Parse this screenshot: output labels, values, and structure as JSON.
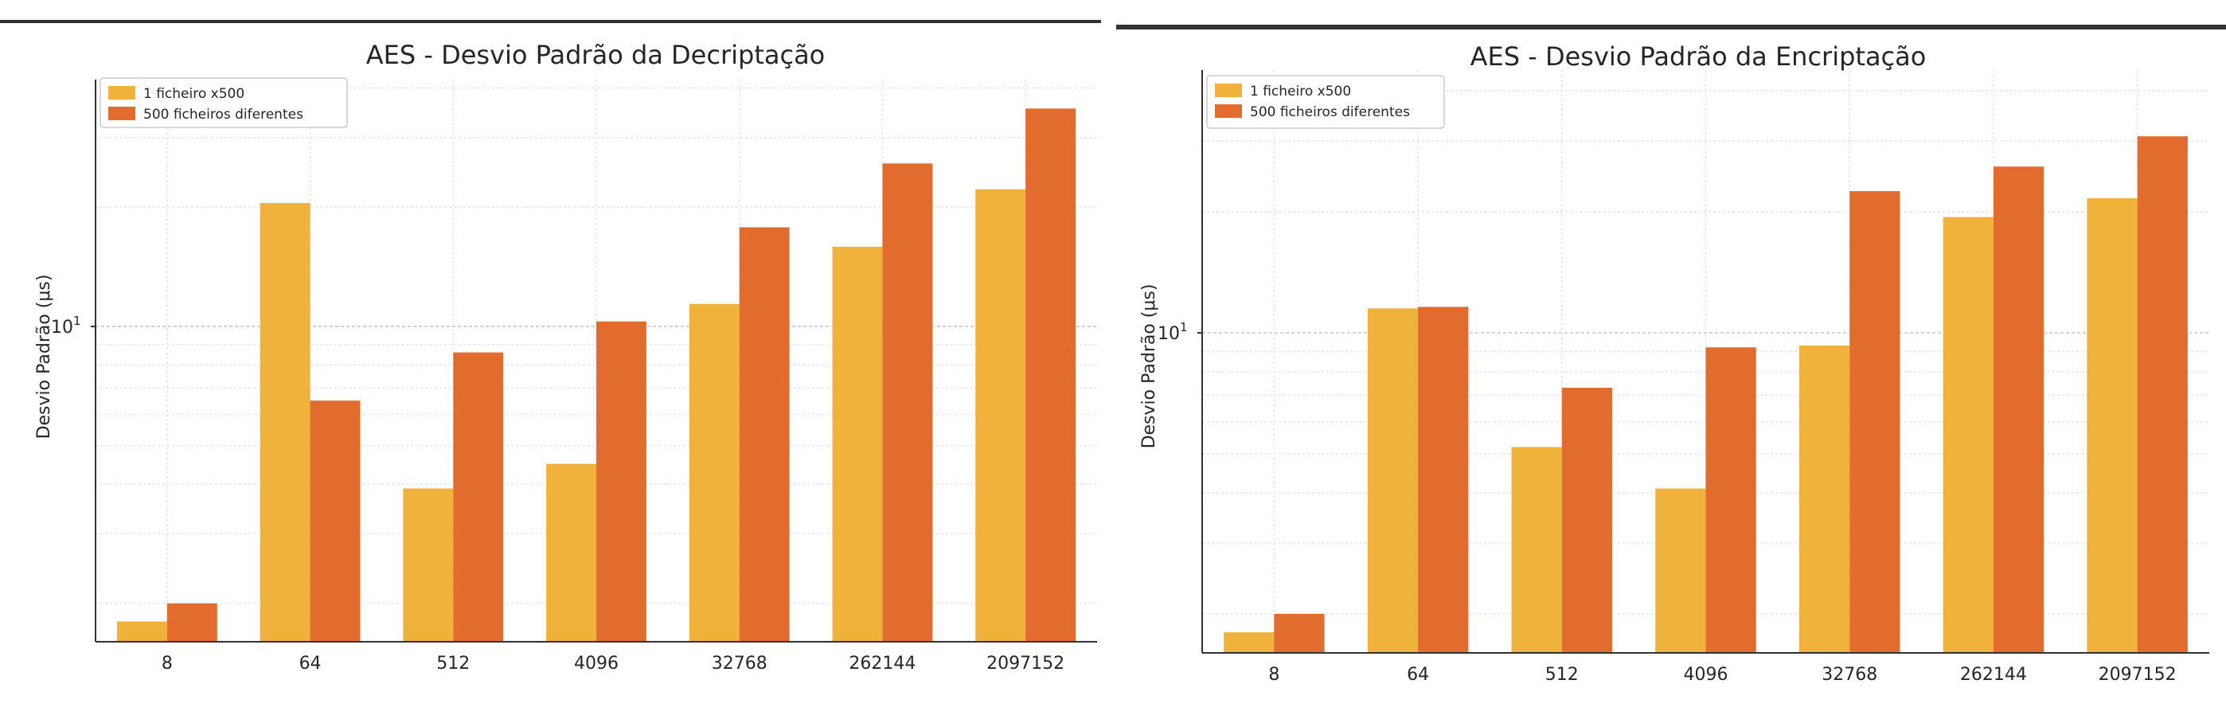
{
  "chart_data": [
    {
      "type": "bar",
      "title": "AES - Desvio Padrão da Decriptação",
      "xlabel": "",
      "ylabel": "Desvio Padrão (μs)",
      "yscale": "log",
      "ylim": [
        1.6,
        42
      ],
      "ytick_label": "10",
      "ytick_label_exp": "1",
      "grid": true,
      "legend_position": "top-left",
      "categories": [
        "8",
        "64",
        "512",
        "4096",
        "32768",
        "262144",
        "2097152"
      ],
      "series": [
        {
          "name": "1 ficheiro x500",
          "color": "#F0B23A",
          "values": [
            1.8,
            20.5,
            3.9,
            4.5,
            11.4,
            15.9,
            22.2
          ]
        },
        {
          "name": "500 ficheiros diferentes",
          "color": "#E26B2E",
          "values": [
            2.0,
            6.5,
            8.6,
            10.3,
            17.8,
            25.8,
            35.5
          ]
        }
      ]
    },
    {
      "type": "bar",
      "title": "AES - Desvio Padrão da Encriptação",
      "xlabel": "",
      "ylabel": "Desvio Padrão (μs)",
      "yscale": "log",
      "ylim": [
        1.6,
        45
      ],
      "ytick_label": "10",
      "ytick_label_exp": "1",
      "grid": true,
      "legend_position": "top-left",
      "categories": [
        "8",
        "64",
        "512",
        "4096",
        "32768",
        "262144",
        "2097152"
      ],
      "series": [
        {
          "name": "1 ficheiro x500",
          "color": "#F0B23A",
          "values": [
            1.8,
            11.5,
            5.2,
            4.1,
            9.3,
            19.4,
            21.6
          ]
        },
        {
          "name": "500 ficheiros diferentes",
          "color": "#E26B2E",
          "values": [
            2.0,
            11.6,
            7.3,
            9.2,
            22.5,
            25.9,
            30.8
          ]
        }
      ]
    }
  ]
}
